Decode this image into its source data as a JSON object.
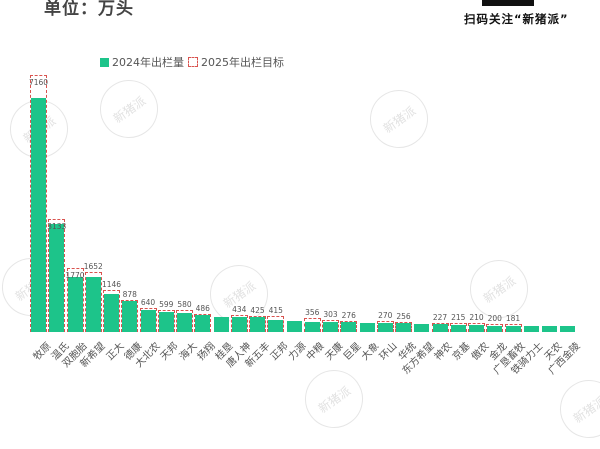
{
  "header": {
    "unit_label": "单位：万头",
    "qr_caption": "扫码关注“新猪派”"
  },
  "watermark_text": "新猪派",
  "colors": {
    "bar": "#1dc48a",
    "target_border": "#d9534f"
  },
  "chart_data": {
    "type": "bar",
    "title": "",
    "xlabel": "",
    "ylabel": "单位：万头",
    "legend_position": "top",
    "grid": false,
    "categories": [
      "牧原",
      "温氏",
      "双胞胎",
      "新希望",
      "正大",
      "德康",
      "大北农",
      "天邦",
      "海大",
      "扬翔",
      "桂垦",
      "唐人神",
      "新五丰",
      "正邦",
      "力源",
      "中粮",
      "天康",
      "巨星",
      "大象",
      "环山",
      "华统",
      "东方希望",
      "神农",
      "京基",
      "傲农",
      "金龙",
      "广垦畜牧",
      "铁骑力士",
      "天农",
      "广西金陵"
    ],
    "series": [
      {
        "name": "2024年出栏量",
        "style": "solid",
        "values": [
          6548,
          3018,
          1530,
          1550,
          1070,
          880,
          610,
          560,
          545,
          470,
          430,
          420,
          410,
          330,
          300,
          290,
          280,
          270,
          250,
          260,
          250,
          230,
          210,
          200,
          190,
          170,
          180,
          160,
          140,
          130
        ]
      },
      {
        "name": "2025年出栏目标",
        "style": "dashed",
        "values": [
          7160,
          3133,
          1770,
          1652,
          1146,
          878,
          640,
          599,
          580,
          486,
          null,
          434,
          425,
          415,
          null,
          356,
          303,
          276,
          null,
          270,
          256,
          null,
          227,
          215,
          210,
          200,
          181,
          null,
          null,
          null
        ]
      }
    ],
    "value_labels": [
      "7160",
      "3133",
      "1770",
      "1652",
      "1146",
      "878",
      "640",
      "599",
      "580",
      "486",
      "",
      "434",
      "425",
      "415",
      "",
      "356",
      "303",
      "276",
      "",
      "270",
      "256",
      "",
      "227",
      "215",
      "210",
      "200",
      "181",
      "",
      "",
      ""
    ]
  }
}
